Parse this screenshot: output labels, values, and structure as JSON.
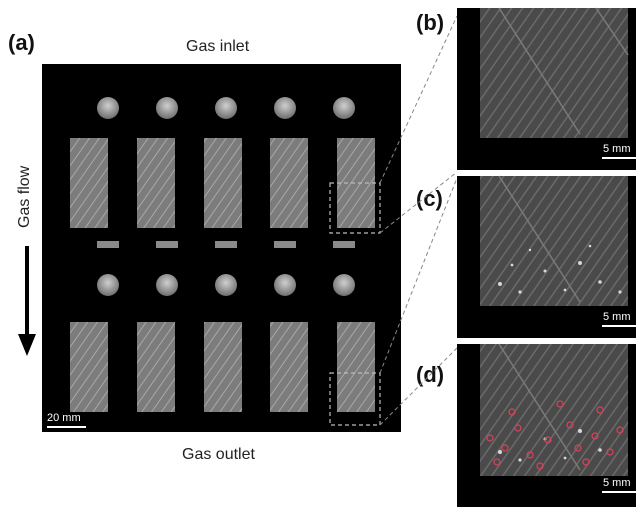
{
  "panels": {
    "a": "(a)",
    "b": "(b)",
    "c": "(c)",
    "d": "(d)"
  },
  "main": {
    "inlet_label": "Gas inlet",
    "outlet_label": "Gas outlet",
    "flow_label": "Gas flow",
    "scale_label": "20 mm"
  },
  "insets": {
    "scale_label": "5 mm"
  },
  "colors": {
    "background": "#000000",
    "sample": "#8a8a8a",
    "droplet_marker": "#e0405a"
  }
}
